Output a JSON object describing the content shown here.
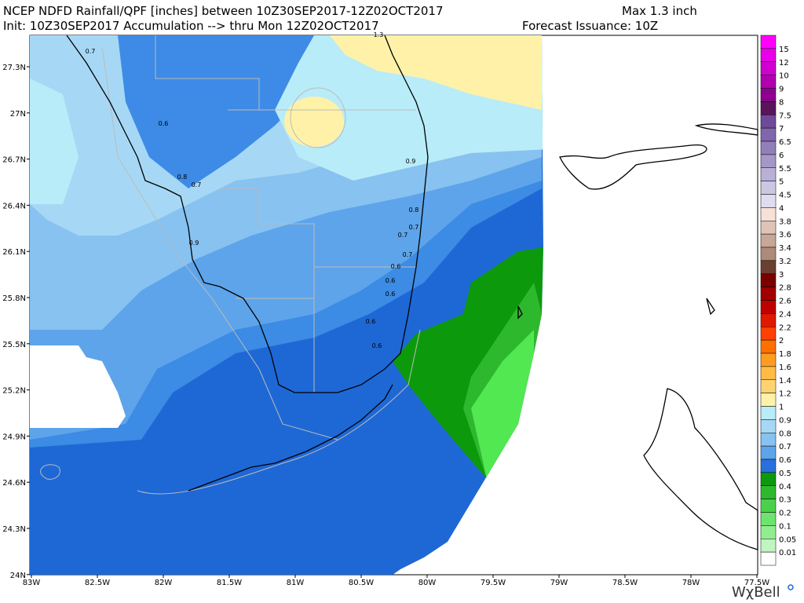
{
  "header": {
    "title_line1": "NCEP NDFD Rainfall/QPF [inches] between 10Z30SEP2017-12Z02OCT2017",
    "max": "Max 1.3 inch",
    "title_line2": "Init: 10Z30SEP2017 Accumulation --> thru Mon 12Z02OCT2017",
    "issuance": "Forecast Issuance: 10Z"
  },
  "map": {
    "latitude_labels": [
      "27.3N",
      "27N",
      "26.7N",
      "26.4N",
      "26.1N",
      "25.8N",
      "25.5N",
      "25.2N",
      "24.9N",
      "24.6N",
      "24.3N",
      "24N"
    ],
    "longitude_labels": [
      "83W",
      "82.5W",
      "82W",
      "81.5W",
      "81W",
      "80.5W",
      "80W",
      "79.5W",
      "79W",
      "78.5W",
      "78W",
      "77.5W"
    ],
    "contour_labels": [
      "1.3",
      "0.7",
      "0.6",
      "0.8",
      "0.7",
      "0.9",
      "0.9",
      "0.8",
      "0.7",
      "0.7",
      "0.7",
      "0.6",
      "0.6",
      "0.6",
      "0.6",
      "0.6"
    ]
  },
  "legend": {
    "labels": [
      "15",
      "12",
      "10",
      "9",
      "8",
      "7.5",
      "7",
      "6.5",
      "6",
      "5.5",
      "5",
      "4.5",
      "4",
      "3.8",
      "3.6",
      "3.4",
      "3.2",
      "3",
      "2.8",
      "2.6",
      "2.4",
      "2.2",
      "2",
      "1.8",
      "1.6",
      "1.4",
      "1.2",
      "1",
      "0.9",
      "0.8",
      "0.7",
      "0.6",
      "0.5",
      "0.4",
      "0.3",
      "0.2",
      "0.1",
      "0.05",
      "0.01"
    ],
    "colors": [
      "#ff00ff",
      "#e800e8",
      "#d000d0",
      "#b000b0",
      "#900090",
      "#5a145a",
      "#6e4a98",
      "#8066ac",
      "#927fba",
      "#a598c8",
      "#b8b0d6",
      "#cbc7e3",
      "#dedcee",
      "#f6e0d8",
      "#dfc3b8",
      "#c7a798",
      "#ae8a79",
      "#6a4030",
      "#7a0000",
      "#a00000",
      "#c00000",
      "#e01800",
      "#ff4000",
      "#ff7000",
      "#ff9c20",
      "#ffbb44",
      "#ffd470",
      "#fff2a8",
      "#b8ecf8",
      "#a6d8f5",
      "#87c2f0",
      "#5ea4ea",
      "#2870dc",
      "#0c9a0c",
      "#2eb82e",
      "#4cd04c",
      "#6ee46e",
      "#90ee90",
      "#c0f5c0",
      "#ffffff"
    ]
  },
  "brand": "WχBell"
}
